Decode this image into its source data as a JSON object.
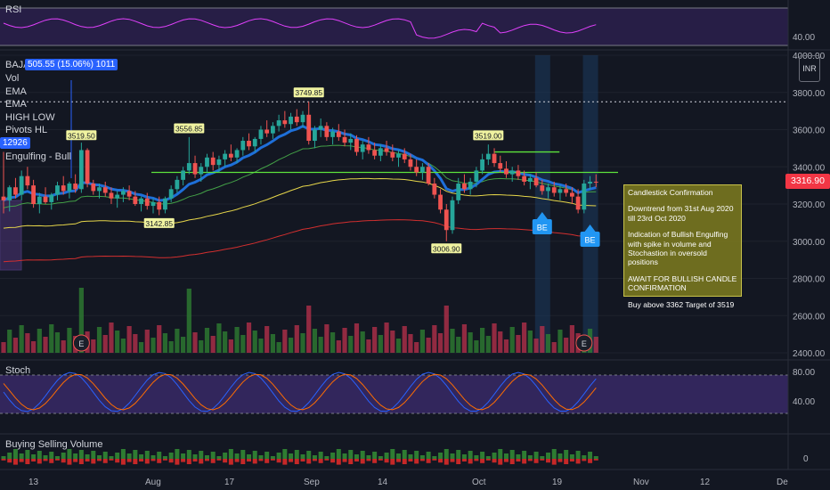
{
  "panes": {
    "rsi": {
      "label": "RSI",
      "ticks": [
        "40.00"
      ]
    },
    "stoch": {
      "label": "Stoch",
      "ticks": [
        "80.00",
        "40.00"
      ]
    },
    "bsv": {
      "label": "Buying Selling Volume",
      "ticks": [
        "0"
      ]
    }
  },
  "main": {
    "symbol_line": "BAJAJ-AUTO (1D) · NSE",
    "tag_top": "505.55 (15.06%) 1011",
    "tag_left": "12926",
    "legend": [
      "Vol",
      "EMA",
      "EMA",
      "HIGH LOW",
      "Pivots HL",
      "EMA",
      "Engulfing - Bull"
    ],
    "currency": "INR",
    "last_price": "3316.90"
  },
  "note": {
    "title": "Candlestick Confirmation",
    "lines": [
      "Downtrend from 31st Aug 2020 till 23rd Oct 2020",
      "Indication of Bullish Engulfing with spike in volume and Stochastion in oversold positions",
      "AWAIT FOR BULLISH CANDLE CONFIRMATION",
      "Buy above 3362 Target of 3519"
    ]
  },
  "chart_data": {
    "type": "candlestick",
    "y_ticks": [
      "4000.00",
      "3800.00",
      "3600.00",
      "3400.00",
      "3200.00",
      "3000.00",
      "2800.00",
      "2600.00",
      "2400.00"
    ],
    "ylim": [
      2400,
      4000
    ],
    "x_ticks": [
      "13",
      "Aug",
      "17",
      "Sep",
      "14",
      "Oct",
      "19",
      "Nov",
      "12",
      "De"
    ],
    "horizontal_levels": {
      "dotted": 3750,
      "support": 3370,
      "short_green": 3480
    },
    "pivot_labels": [
      {
        "text": "3519.50",
        "date_index": 13,
        "value": 3519.5
      },
      {
        "text": "3556.85",
        "date_index": 31,
        "value": 3556.85
      },
      {
        "text": "3142.85",
        "date_index": 26,
        "value": 3142.85
      },
      {
        "text": "3749.85",
        "date_index": 51,
        "value": 3749.85
      },
      {
        "text": "3519.00",
        "date_index": 81,
        "value": 3519.0
      },
      {
        "text": "3006.90",
        "date_index": 74,
        "value": 3006.9
      }
    ],
    "markers": [
      {
        "text": "BE",
        "date_index": 90
      },
      {
        "text": "BE",
        "date_index": 98
      }
    ],
    "earnings_markers": [
      "E",
      "E"
    ],
    "candles": [
      [
        3240,
        3480,
        3150,
        3220
      ],
      [
        3220,
        3300,
        3160,
        3290
      ],
      [
        3290,
        3340,
        3230,
        3250
      ],
      [
        3250,
        3380,
        3220,
        3350
      ],
      [
        3350,
        3400,
        3280,
        3300
      ],
      [
        3300,
        3330,
        3180,
        3200
      ],
      [
        3200,
        3260,
        3150,
        3240
      ],
      [
        3240,
        3290,
        3200,
        3210
      ],
      [
        3210,
        3260,
        3170,
        3250
      ],
      [
        3250,
        3320,
        3220,
        3300
      ],
      [
        3300,
        3350,
        3250,
        3270
      ],
      [
        3270,
        3320,
        3230,
        3310
      ],
      [
        3310,
        3360,
        3260,
        3280
      ],
      [
        3280,
        3530,
        3260,
        3490
      ],
      [
        3490,
        3500,
        3290,
        3310
      ],
      [
        3310,
        3330,
        3250,
        3270
      ],
      [
        3270,
        3310,
        3230,
        3290
      ],
      [
        3290,
        3320,
        3240,
        3260
      ],
      [
        3260,
        3290,
        3200,
        3230
      ],
      [
        3230,
        3270,
        3180,
        3250
      ],
      [
        3250,
        3290,
        3210,
        3270
      ],
      [
        3270,
        3300,
        3220,
        3240
      ],
      [
        3240,
        3270,
        3190,
        3200
      ],
      [
        3200,
        3240,
        3160,
        3230
      ],
      [
        3230,
        3260,
        3170,
        3190
      ],
      [
        3190,
        3230,
        3150,
        3210
      ],
      [
        3210,
        3240,
        3140,
        3170
      ],
      [
        3170,
        3240,
        3150,
        3230
      ],
      [
        3230,
        3300,
        3210,
        3280
      ],
      [
        3280,
        3350,
        3260,
        3330
      ],
      [
        3330,
        3400,
        3300,
        3380
      ],
      [
        3380,
        3560,
        3360,
        3420
      ],
      [
        3420,
        3460,
        3340,
        3360
      ],
      [
        3360,
        3420,
        3320,
        3400
      ],
      [
        3400,
        3470,
        3370,
        3450
      ],
      [
        3450,
        3480,
        3380,
        3410
      ],
      [
        3410,
        3460,
        3370,
        3440
      ],
      [
        3440,
        3490,
        3400,
        3470
      ],
      [
        3470,
        3520,
        3430,
        3450
      ],
      [
        3450,
        3500,
        3420,
        3490
      ],
      [
        3490,
        3560,
        3460,
        3540
      ],
      [
        3540,
        3580,
        3490,
        3510
      ],
      [
        3510,
        3560,
        3480,
        3550
      ],
      [
        3550,
        3620,
        3520,
        3600
      ],
      [
        3600,
        3650,
        3560,
        3580
      ],
      [
        3580,
        3640,
        3550,
        3620
      ],
      [
        3620,
        3680,
        3590,
        3650
      ],
      [
        3650,
        3700,
        3610,
        3630
      ],
      [
        3630,
        3690,
        3600,
        3670
      ],
      [
        3670,
        3710,
        3620,
        3640
      ],
      [
        3640,
        3700,
        3610,
        3680
      ],
      [
        3680,
        3750,
        3520,
        3540
      ],
      [
        3540,
        3620,
        3500,
        3600
      ],
      [
        3600,
        3660,
        3560,
        3620
      ],
      [
        3620,
        3640,
        3540,
        3560
      ],
      [
        3560,
        3610,
        3520,
        3590
      ],
      [
        3590,
        3630,
        3540,
        3560
      ],
      [
        3560,
        3600,
        3510,
        3530
      ],
      [
        3530,
        3580,
        3490,
        3550
      ],
      [
        3550,
        3570,
        3460,
        3480
      ],
      [
        3480,
        3540,
        3440,
        3520
      ],
      [
        3520,
        3560,
        3470,
        3490
      ],
      [
        3490,
        3530,
        3440,
        3460
      ],
      [
        3460,
        3520,
        3430,
        3500
      ],
      [
        3500,
        3540,
        3460,
        3480
      ],
      [
        3480,
        3520,
        3430,
        3450
      ],
      [
        3450,
        3490,
        3400,
        3470
      ],
      [
        3470,
        3500,
        3420,
        3440
      ],
      [
        3440,
        3470,
        3380,
        3400
      ],
      [
        3400,
        3440,
        3350,
        3370
      ],
      [
        3370,
        3420,
        3330,
        3400
      ],
      [
        3400,
        3420,
        3300,
        3310
      ],
      [
        3310,
        3340,
        3230,
        3250
      ],
      [
        3250,
        3280,
        3150,
        3170
      ],
      [
        3170,
        3200,
        3000,
        3060
      ],
      [
        3060,
        3240,
        3040,
        3220
      ],
      [
        3220,
        3340,
        3200,
        3310
      ],
      [
        3310,
        3360,
        3260,
        3280
      ],
      [
        3280,
        3340,
        3250,
        3320
      ],
      [
        3320,
        3400,
        3290,
        3380
      ],
      [
        3380,
        3470,
        3360,
        3440
      ],
      [
        3440,
        3520,
        3410,
        3470
      ],
      [
        3470,
        3500,
        3400,
        3420
      ],
      [
        3420,
        3460,
        3370,
        3390
      ],
      [
        3390,
        3430,
        3340,
        3360
      ],
      [
        3360,
        3400,
        3320,
        3380
      ],
      [
        3380,
        3410,
        3330,
        3350
      ],
      [
        3350,
        3380,
        3300,
        3320
      ],
      [
        3320,
        3360,
        3280,
        3340
      ],
      [
        3340,
        3370,
        3290,
        3300
      ],
      [
        3300,
        3330,
        3250,
        3270
      ],
      [
        3270,
        3310,
        3230,
        3290
      ],
      [
        3290,
        3320,
        3240,
        3260
      ],
      [
        3260,
        3300,
        3220,
        3280
      ],
      [
        3280,
        3310,
        3240,
        3260
      ],
      [
        3260,
        3290,
        3200,
        3240
      ],
      [
        3240,
        3280,
        3150,
        3170
      ],
      [
        3170,
        3330,
        3150,
        3310
      ],
      [
        3310,
        3350,
        3280,
        3320
      ],
      [
        3320,
        3360,
        3290,
        3316.9
      ]
    ]
  }
}
